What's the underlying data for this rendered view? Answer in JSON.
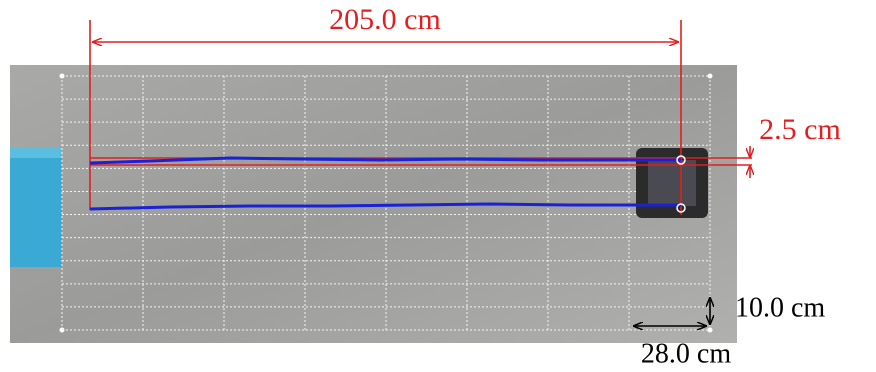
{
  "annotations": {
    "length": "205.0 cm",
    "offset": "2.5 cm",
    "grid_height": "10.0 cm",
    "grid_width": "28.0 cm"
  }
}
